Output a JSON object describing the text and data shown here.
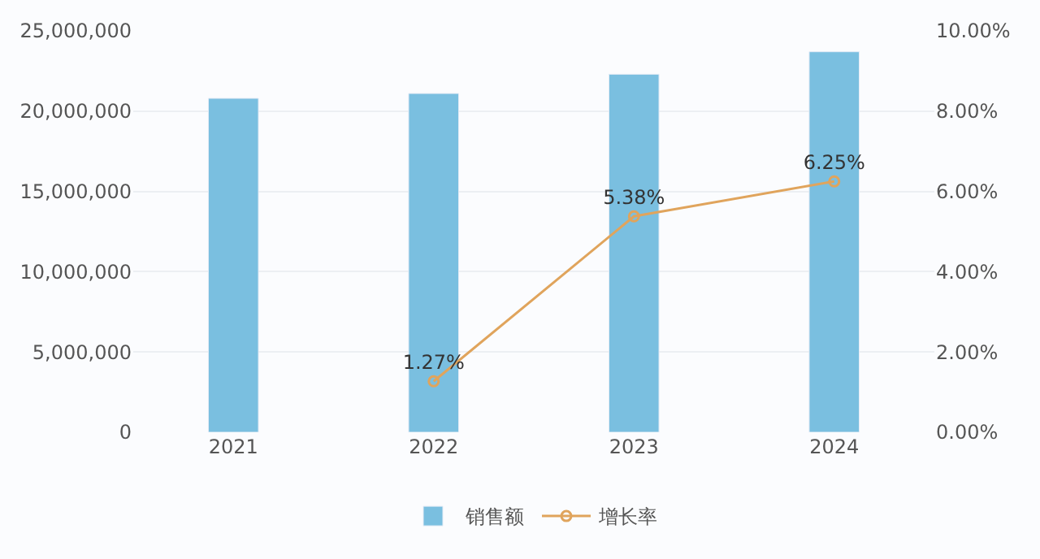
{
  "chart_data": {
    "type": "bar",
    "categories": [
      "2021",
      "2022",
      "2023",
      "2024"
    ],
    "series": [
      {
        "name": "销售额",
        "color": "#7abfe0",
        "values": [
          20800000,
          21100000,
          22300000,
          23700000
        ]
      },
      {
        "name": "增长率",
        "type": "line",
        "axis": "y2",
        "color": "#e0a45c",
        "marker": "circle",
        "values": [
          null,
          1.27,
          5.38,
          6.25
        ],
        "value_labels": [
          null,
          "1.27%",
          "5.38%",
          "6.25%"
        ]
      }
    ],
    "ylim": [
      0,
      25000000
    ],
    "yticks": [
      0,
      {
        "value": 5000000,
        "label": "5,000,000"
      },
      {
        "value": 10000000,
        "label": "10,000,000"
      },
      {
        "value": 15000000,
        "label": "15,000,000"
      },
      {
        "value": 20000000,
        "label": "20,000,000"
      },
      {
        "value": 25000000,
        "label": "25,000,000"
      }
    ],
    "y2lim": [
      0,
      10
    ],
    "y2ticks": [
      {
        "value": 0,
        "label": "0.00%"
      },
      {
        "value": 2,
        "label": "2.00%"
      },
      {
        "value": 4,
        "label": "4.00%"
      },
      {
        "value": 6,
        "label": "6.00%"
      },
      {
        "value": 8,
        "label": "8.00%"
      },
      {
        "value": 10,
        "label": "10.00%"
      }
    ],
    "grid": "y",
    "legend": "bottom"
  }
}
